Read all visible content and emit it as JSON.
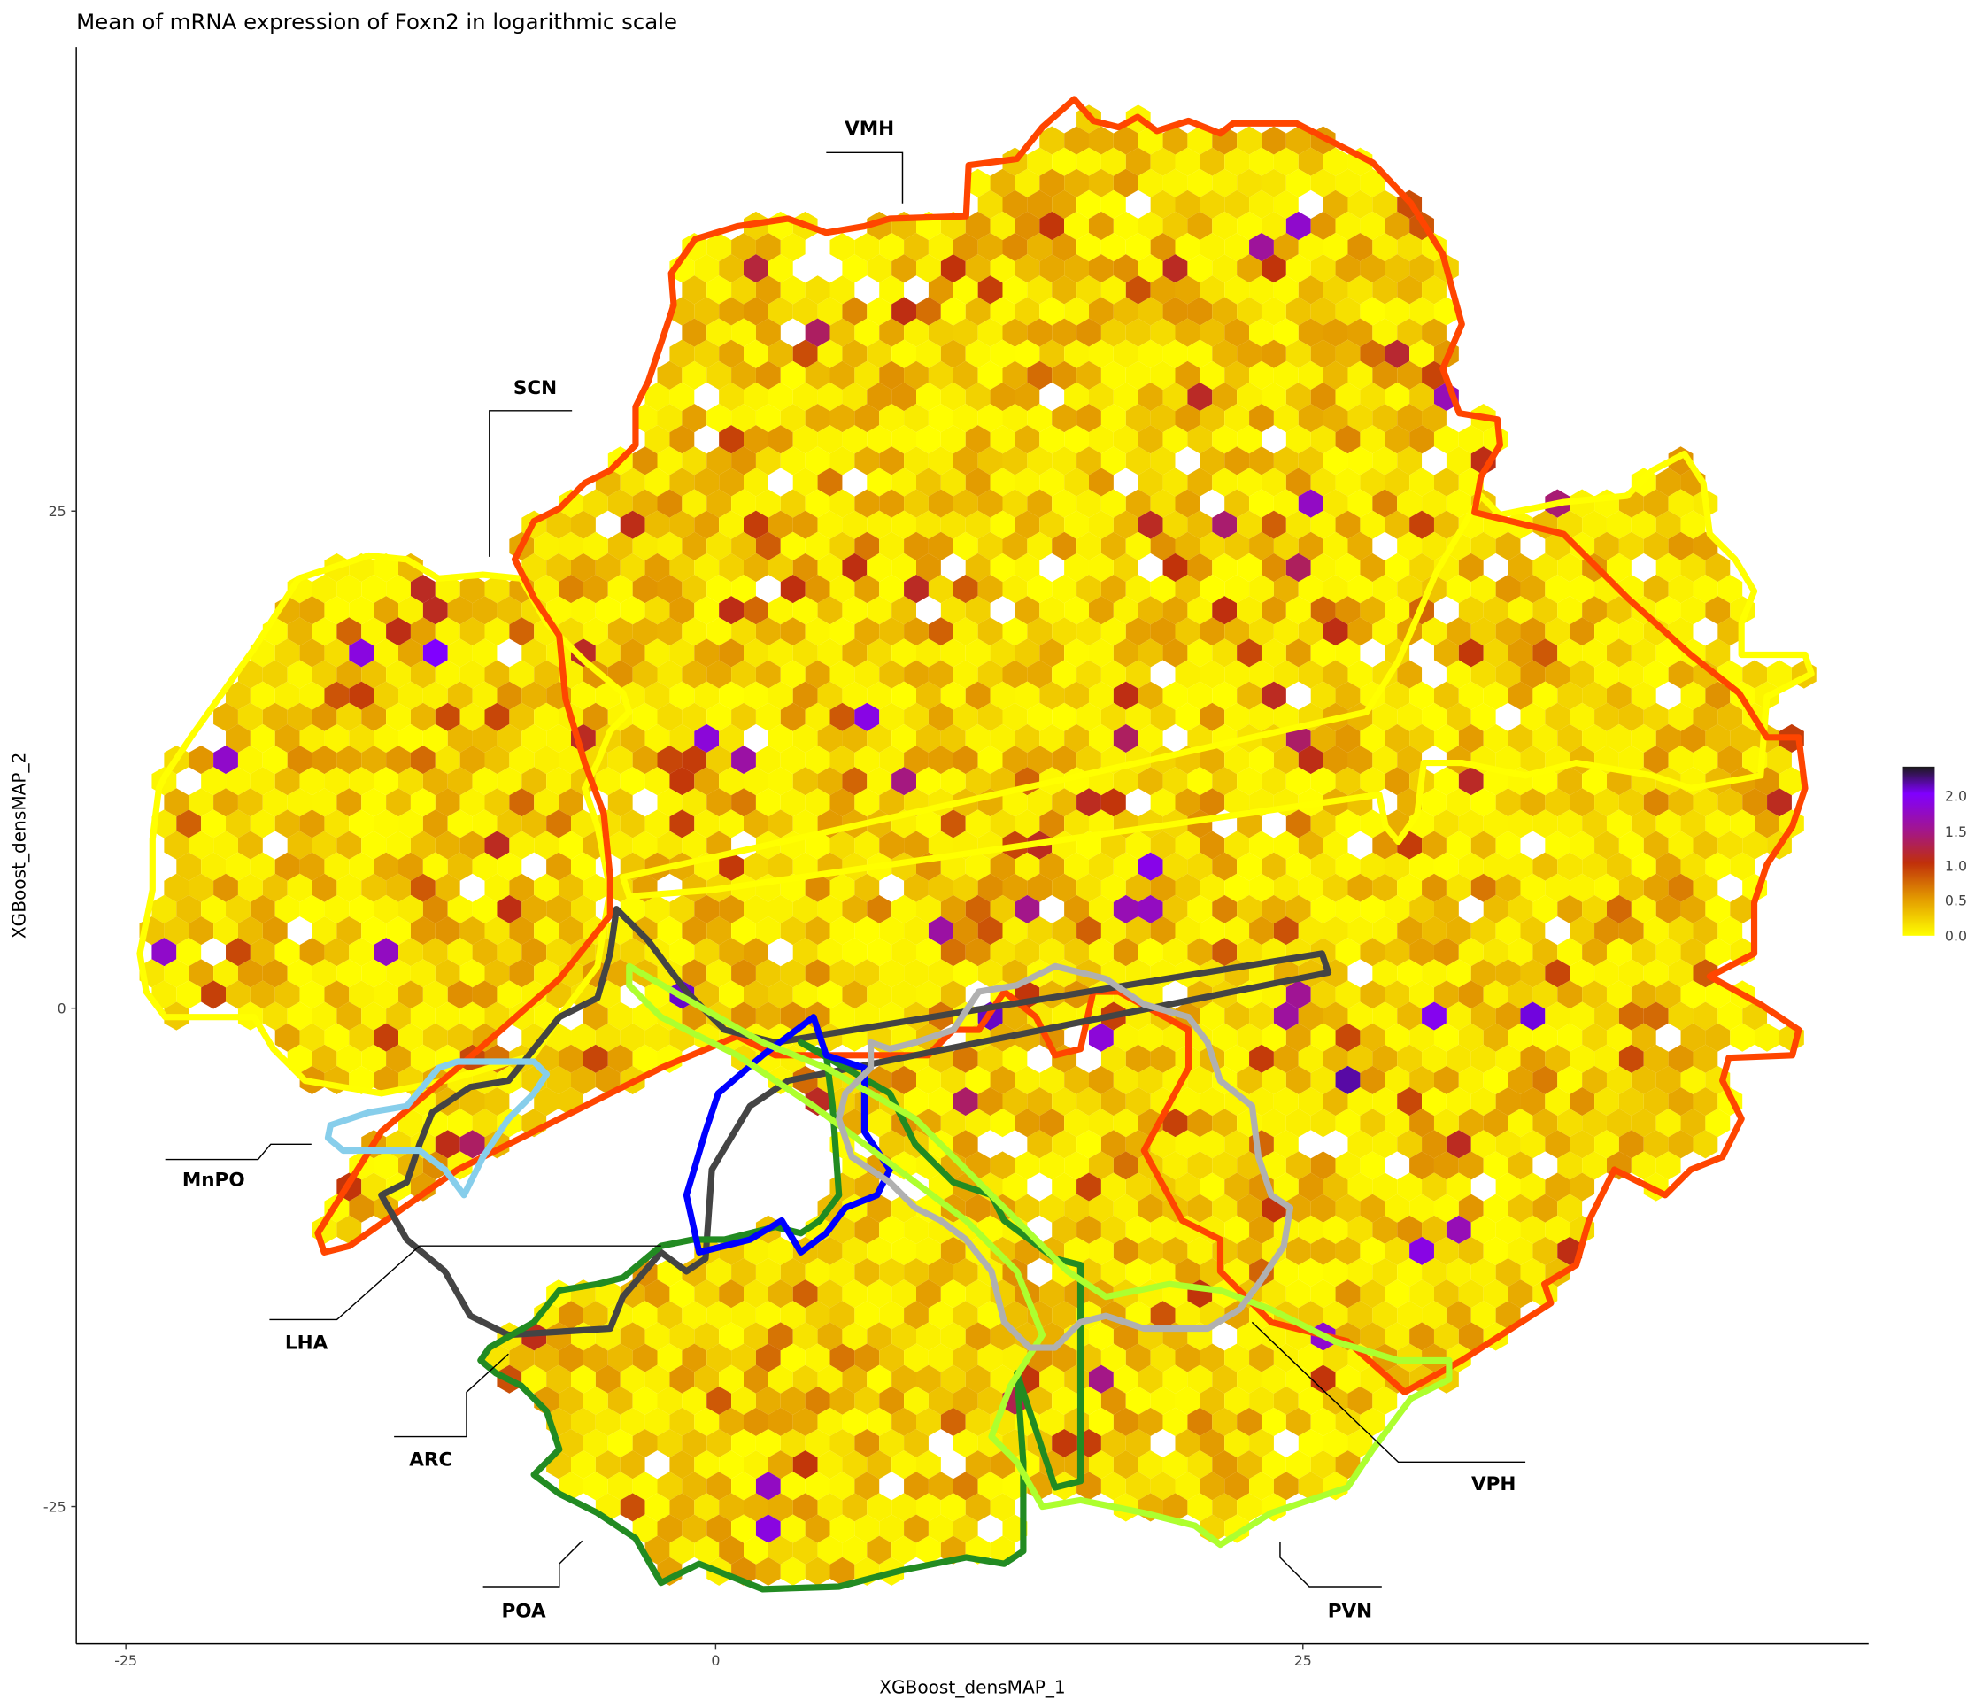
{
  "chart_data": {
    "type": "heatmap",
    "subtype": "hexbin",
    "title": "Mean of mRNA expression of Foxn2 in logarithmic scale",
    "xlabel": "XGBoost_densMAP_1",
    "ylabel": "XGBoost_densMAP_2",
    "x_ticks": [
      "-25",
      "0",
      "25"
    ],
    "y_ticks": [
      "25",
      "0",
      "-25"
    ],
    "xlim": [
      -27,
      49
    ],
    "ylim": [
      -32,
      49
    ],
    "grid": false,
    "colorbar": {
      "ticks": [
        "2.0",
        "1.5",
        "1.0",
        "0.5",
        "0.0"
      ],
      "range": [
        0,
        2.3
      ],
      "colors": [
        "#ffff00",
        "#e39a00",
        "#c0300a",
        "#a3168a",
        "#8000ff",
        "#1a1a1a"
      ],
      "placement": "right"
    },
    "regions": [
      {
        "label": "VMH",
        "color": "#ff4500"
      },
      {
        "label": "SCN",
        "color": "#ffff00"
      },
      {
        "label": "MnPO",
        "color": "#87ceeb"
      },
      {
        "label": "LHA",
        "color": "#444444"
      },
      {
        "label": "ARC",
        "color": "#0000ff"
      },
      {
        "label": "POA",
        "color": "#228b22"
      },
      {
        "label": "PVN",
        "color": "#adff2f"
      },
      {
        "label": "VPH",
        "color": "#b0b0b0"
      }
    ]
  }
}
